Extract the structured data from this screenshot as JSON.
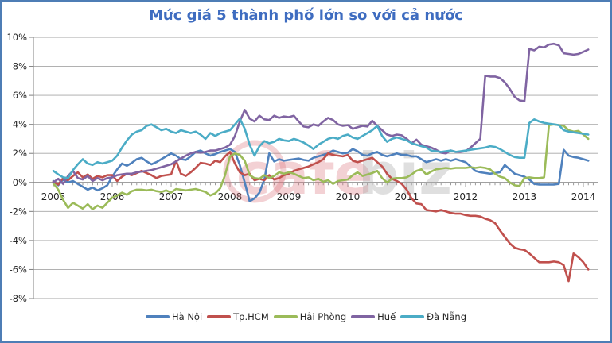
{
  "theme": {
    "title_color": "#3E6CC0",
    "border_color": "#4E7DB5",
    "gridline_color": "#A6A6A6",
    "axis_color": "#808080",
    "label_color": "#262626",
    "watermark_pink": "rgba(219,112,120,0.32)",
    "watermark_gray": "rgba(170,170,170,0.38)"
  },
  "watermark": {
    "text_primary": "cafe",
    "text_secondary": "biz"
  },
  "chart_data": {
    "type": "line",
    "title": "Mức giá 5 thành phố lớn so với cả nước",
    "x_unit": "month",
    "x_start": "2005-01",
    "x_end": "2014-02",
    "x_tick_labels": [
      "2005",
      "2006",
      "2007",
      "2008",
      "2009",
      "2010",
      "2011",
      "2012",
      "2013",
      "2014"
    ],
    "y_tick_labels": [
      "10%",
      "8%",
      "6%",
      "4%",
      "2%",
      "0%",
      "-2%",
      "-4%",
      "-6%",
      "-8%"
    ],
    "ylim": [
      -8,
      10
    ],
    "y_step": 2,
    "grid": "horizontal",
    "legend_position": "bottom",
    "series": [
      {
        "name": "Hà Nội",
        "color": "#4F81BD",
        "values": [
          0.1,
          -0.2,
          0.2,
          0.0,
          0.1,
          -0.1,
          -0.3,
          -0.5,
          -0.35,
          -0.55,
          -0.4,
          -0.2,
          0.4,
          0.9,
          1.3,
          1.15,
          1.35,
          1.6,
          1.7,
          1.45,
          1.25,
          1.4,
          1.6,
          1.8,
          2.0,
          1.85,
          1.6,
          1.55,
          1.8,
          2.1,
          2.2,
          2.0,
          1.85,
          1.95,
          2.1,
          2.2,
          2.3,
          2.1,
          1.2,
          0.0,
          -1.3,
          -1.1,
          -0.7,
          0.2,
          2.0,
          1.45,
          1.6,
          1.5,
          1.55,
          1.6,
          1.65,
          1.55,
          1.5,
          1.7,
          1.8,
          1.9,
          2.0,
          2.2,
          2.1,
          2.0,
          2.05,
          2.3,
          2.15,
          1.9,
          1.85,
          2.0,
          2.1,
          1.9,
          1.8,
          1.9,
          2.0,
          1.9,
          1.9,
          1.8,
          1.8,
          1.6,
          1.4,
          1.5,
          1.6,
          1.5,
          1.6,
          1.5,
          1.6,
          1.5,
          1.4,
          1.1,
          0.8,
          0.7,
          0.65,
          0.6,
          0.65,
          0.7,
          1.2,
          0.9,
          0.6,
          0.5,
          0.4,
          0.2,
          -0.1,
          -0.15,
          -0.15,
          -0.15,
          -0.15,
          -0.1,
          2.25,
          1.85,
          1.75,
          1.7,
          1.6,
          1.5
        ]
      },
      {
        "name": "Tp.HCM",
        "color": "#C0504D",
        "values": [
          0.05,
          -0.15,
          0.3,
          0.15,
          0.45,
          0.7,
          0.35,
          0.55,
          0.25,
          0.45,
          0.35,
          0.5,
          0.5,
          0.1,
          0.4,
          0.6,
          0.5,
          0.65,
          0.8,
          0.65,
          0.5,
          0.3,
          0.45,
          0.5,
          0.55,
          1.5,
          0.6,
          0.45,
          0.7,
          1.0,
          1.35,
          1.3,
          1.2,
          1.5,
          1.4,
          1.8,
          2.1,
          1.3,
          0.7,
          0.5,
          0.6,
          0.15,
          0.25,
          0.15,
          0.5,
          0.2,
          0.3,
          0.5,
          0.6,
          0.8,
          0.9,
          1.0,
          1.1,
          1.25,
          1.4,
          1.6,
          2.0,
          1.9,
          1.85,
          1.8,
          1.9,
          1.5,
          1.4,
          1.5,
          1.6,
          1.7,
          1.4,
          1.1,
          0.6,
          0.25,
          0.1,
          -0.1,
          -0.5,
          -1.1,
          -1.45,
          -1.5,
          -1.9,
          -1.95,
          -2.0,
          -1.9,
          -2.0,
          -2.1,
          -2.15,
          -2.15,
          -2.25,
          -2.3,
          -2.3,
          -2.35,
          -2.5,
          -2.6,
          -2.8,
          -3.3,
          -3.75,
          -4.2,
          -4.5,
          -4.6,
          -4.65,
          -4.9,
          -5.2,
          -5.5,
          -5.5,
          -5.5,
          -5.45,
          -5.5,
          -5.7,
          -6.8,
          -4.9,
          -5.15,
          -5.5,
          -6.0
        ]
      },
      {
        "name": "Hải Phòng",
        "color": "#9BBB59",
        "values": [
          -0.05,
          -0.5,
          -1.2,
          -1.75,
          -1.4,
          -1.6,
          -1.8,
          -1.5,
          -1.85,
          -1.6,
          -1.75,
          -1.4,
          -1.05,
          -0.9,
          -0.7,
          -0.85,
          -0.6,
          -0.5,
          -0.5,
          -0.55,
          -0.5,
          -0.6,
          -0.65,
          -0.55,
          -0.7,
          -0.45,
          -0.5,
          -0.55,
          -0.5,
          -0.45,
          -0.55,
          -0.65,
          -0.9,
          -0.75,
          -0.4,
          0.5,
          1.8,
          2.0,
          1.9,
          1.5,
          0.5,
          0.3,
          0.25,
          0.5,
          0.3,
          0.45,
          0.7,
          0.6,
          0.7,
          0.6,
          0.45,
          0.3,
          0.35,
          0.15,
          0.25,
          0.05,
          0.15,
          -0.1,
          0.1,
          0.15,
          0.2,
          0.5,
          0.7,
          0.45,
          0.55,
          0.65,
          0.8,
          0.3,
          0.0,
          0.25,
          0.3,
          0.3,
          0.35,
          0.55,
          0.8,
          0.9,
          0.55,
          0.75,
          0.9,
          0.95,
          1.0,
          0.95,
          1.0,
          1.0,
          1.0,
          1.05,
          1.0,
          1.05,
          1.0,
          0.9,
          0.6,
          0.4,
          0.3,
          0.0,
          -0.2,
          -0.25,
          0.3,
          0.35,
          0.3,
          0.3,
          0.35,
          3.95,
          4.0,
          3.95,
          3.9,
          3.6,
          3.5,
          3.55,
          3.3,
          3.0
        ]
      },
      {
        "name": "Huế",
        "color": "#8064A2",
        "values": [
          0.0,
          0.25,
          -0.1,
          0.45,
          0.8,
          0.3,
          0.2,
          0.45,
          0.1,
          0.3,
          0.15,
          0.3,
          0.35,
          0.5,
          0.55,
          0.6,
          0.6,
          0.7,
          0.75,
          0.8,
          0.85,
          0.95,
          1.05,
          1.15,
          1.25,
          1.45,
          1.65,
          1.85,
          2.0,
          2.1,
          2.05,
          2.1,
          2.2,
          2.2,
          2.3,
          2.4,
          2.6,
          3.2,
          4.2,
          5.0,
          4.4,
          4.2,
          4.6,
          4.35,
          4.3,
          4.6,
          4.45,
          4.55,
          4.5,
          4.6,
          4.2,
          3.85,
          3.8,
          4.0,
          3.9,
          4.2,
          4.45,
          4.3,
          4.0,
          3.9,
          3.95,
          3.7,
          3.8,
          3.9,
          3.85,
          4.25,
          3.9,
          3.6,
          3.3,
          3.2,
          3.3,
          3.25,
          3.0,
          2.7,
          2.95,
          2.6,
          2.5,
          2.4,
          2.25,
          2.05,
          2.0,
          2.2,
          2.1,
          2.1,
          2.15,
          2.4,
          2.7,
          3.0,
          7.35,
          7.3,
          7.3,
          7.2,
          6.9,
          6.45,
          5.9,
          5.65,
          5.6,
          9.2,
          9.1,
          9.35,
          9.3,
          9.5,
          9.55,
          9.45,
          8.9,
          8.85,
          8.8,
          8.85,
          9.0,
          9.15
        ]
      },
      {
        "name": "Đà Nẵng",
        "color": "#4BACC6",
        "values": [
          0.8,
          0.55,
          0.35,
          0.3,
          0.85,
          1.25,
          1.6,
          1.3,
          1.2,
          1.4,
          1.3,
          1.4,
          1.5,
          1.85,
          2.4,
          2.9,
          3.3,
          3.5,
          3.6,
          3.9,
          4.0,
          3.8,
          3.6,
          3.7,
          3.5,
          3.4,
          3.6,
          3.5,
          3.4,
          3.5,
          3.3,
          3.0,
          3.4,
          3.2,
          3.4,
          3.5,
          3.6,
          4.0,
          4.4,
          3.7,
          2.6,
          1.85,
          2.5,
          2.85,
          2.7,
          2.8,
          3.0,
          2.9,
          2.85,
          3.0,
          2.9,
          2.75,
          2.55,
          2.3,
          2.6,
          2.8,
          3.0,
          3.1,
          3.0,
          3.2,
          3.3,
          3.1,
          3.0,
          3.2,
          3.4,
          3.6,
          3.9,
          3.2,
          2.8,
          3.0,
          3.1,
          3.0,
          2.9,
          2.7,
          2.6,
          2.5,
          2.4,
          2.2,
          2.15,
          2.1,
          2.15,
          2.2,
          2.1,
          2.15,
          2.2,
          2.25,
          2.3,
          2.35,
          2.4,
          2.5,
          2.45,
          2.3,
          2.1,
          1.9,
          1.75,
          1.7,
          1.7,
          4.1,
          4.35,
          4.2,
          4.1,
          4.05,
          4.0,
          3.95,
          3.6,
          3.5,
          3.45,
          3.4,
          3.35,
          3.3
        ]
      }
    ]
  }
}
